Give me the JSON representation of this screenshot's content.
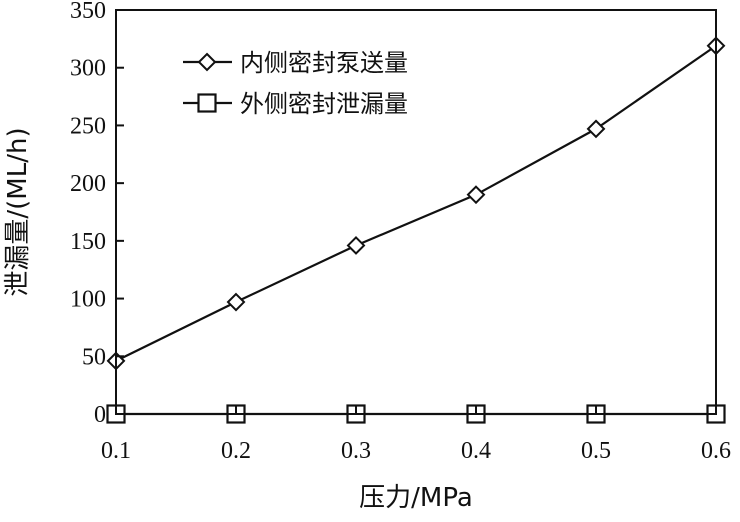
{
  "chart_data": {
    "type": "line",
    "x": [
      0.1,
      0.2,
      0.3,
      0.4,
      0.5,
      0.6
    ],
    "xlim": [
      0.1,
      0.6
    ],
    "ylim": [
      0,
      350
    ],
    "xticks": [
      "0.1",
      "0.2",
      "0.3",
      "0.4",
      "0.5",
      "0.6"
    ],
    "yticks": [
      "0",
      "50",
      "100",
      "150",
      "200",
      "250",
      "300",
      "350"
    ],
    "xlabel": "压力/MPa",
    "ylabel": "泄漏量/(ML/h)",
    "grid": false,
    "legend_position": "top-left",
    "series": [
      {
        "name": "内侧密封泵送量",
        "marker": "diamond",
        "color": "#111111",
        "values": [
          46,
          97,
          146,
          190,
          247,
          319
        ]
      },
      {
        "name": "外侧密封泄漏量",
        "marker": "square",
        "color": "#111111",
        "values": [
          0,
          0,
          0,
          0,
          0,
          0
        ]
      }
    ]
  }
}
